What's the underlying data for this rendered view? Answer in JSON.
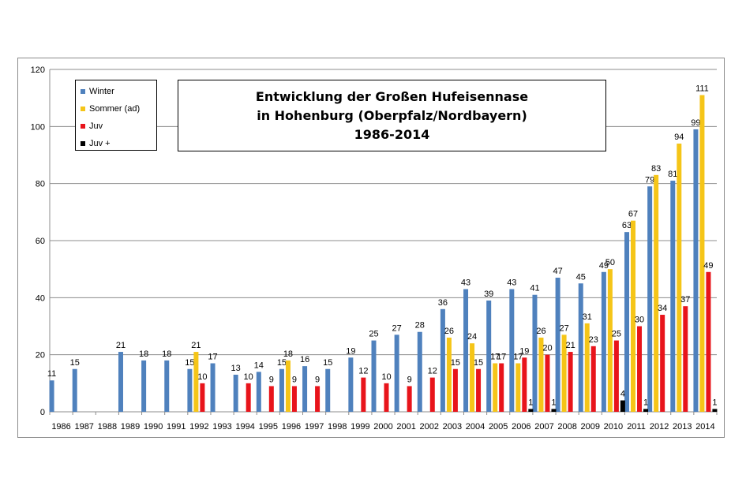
{
  "chart_data": {
    "type": "bar",
    "title_lines": [
      "Entwicklung der Großen Hufeisennase",
      "in Hohenburg (Oberpfalz/Nordbayern)",
      "1986-2014"
    ],
    "categories": [
      "1986",
      "1987",
      "1988",
      "1989",
      "1990",
      "1991",
      "1992",
      "1993",
      "1994",
      "1995",
      "1996",
      "1997",
      "1998",
      "1999",
      "2000",
      "2001",
      "2002",
      "2003",
      "2004",
      "2005",
      "2006",
      "2007",
      "2008",
      "2009",
      "2010",
      "2011",
      "2012",
      "2013",
      "2014"
    ],
    "ylim": [
      0,
      120
    ],
    "yticks": [
      0,
      20,
      40,
      60,
      80,
      100,
      120
    ],
    "grid": true,
    "legend_position": "top-left",
    "series": [
      {
        "name": "Winter",
        "color": "#4f81bd",
        "values": [
          11,
          15,
          null,
          21,
          18,
          18,
          15,
          17,
          13,
          14,
          15,
          16,
          15,
          19,
          25,
          27,
          28,
          36,
          43,
          39,
          43,
          41,
          47,
          45,
          49,
          63,
          79,
          81,
          99
        ]
      },
      {
        "name": "Sommer (ad)",
        "color": "#f5c518",
        "values": [
          null,
          null,
          null,
          null,
          null,
          null,
          21,
          null,
          null,
          null,
          18,
          null,
          null,
          null,
          null,
          null,
          null,
          26,
          24,
          17,
          17,
          26,
          27,
          31,
          50,
          67,
          83,
          94,
          111
        ]
      },
      {
        "name": "Juv",
        "color": "#e8141b",
        "values": [
          null,
          null,
          null,
          null,
          null,
          null,
          10,
          null,
          10,
          9,
          9,
          9,
          null,
          12,
          10,
          9,
          12,
          15,
          15,
          17,
          19,
          20,
          21,
          23,
          25,
          30,
          34,
          37,
          49
        ]
      },
      {
        "name": "Juv +",
        "color": "#000000",
        "values": [
          null,
          null,
          null,
          null,
          null,
          null,
          null,
          null,
          null,
          null,
          null,
          null,
          null,
          null,
          null,
          null,
          null,
          null,
          null,
          null,
          1,
          1,
          null,
          null,
          4,
          1,
          null,
          null,
          1
        ]
      }
    ]
  }
}
